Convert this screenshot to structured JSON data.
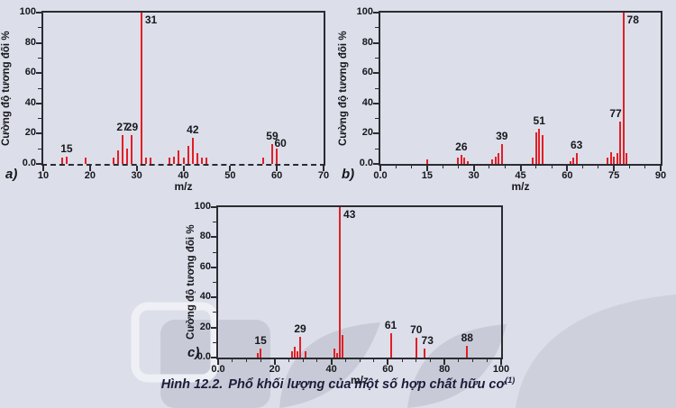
{
  "caption": {
    "prefix": "Hình 12.2.",
    "text": "Phổ khối lượng của một số hợp chất hữu cơ",
    "superscript": "(1)"
  },
  "colors": {
    "background": "#dcdee9",
    "bar": "#e11f26",
    "axis": "#2b2b31",
    "text": "#17171c",
    "caption": "#1c1c3a",
    "watermark": "#c8cbd7",
    "watermark_light": "#eef0f6"
  },
  "chart_data": [
    {
      "id": "a",
      "type": "bar",
      "panel_label": "a)",
      "title": "",
      "xlabel": "m/z",
      "ylabel": "Cường độ tương đối %",
      "xlim": [
        10,
        70
      ],
      "ylim": [
        0,
        100
      ],
      "grid": false,
      "x_axis_line": "dashed",
      "x_minor_step": null,
      "y_minor_step": 10,
      "x_major_ticks": [
        {
          "value": 10,
          "label": "10"
        },
        {
          "value": 20,
          "label": "20"
        },
        {
          "value": 30,
          "label": "30"
        },
        {
          "value": 40,
          "label": "40"
        },
        {
          "value": 50,
          "label": "50"
        },
        {
          "value": 60,
          "label": "60"
        },
        {
          "value": 70,
          "label": "70"
        }
      ],
      "y_major_ticks": [
        {
          "value": 0,
          "label": "0.0"
        },
        {
          "value": 20,
          "label": "20"
        },
        {
          "value": 40,
          "label": "40"
        },
        {
          "value": 60,
          "label": "60"
        },
        {
          "value": 80,
          "label": "80"
        },
        {
          "value": 100,
          "label": "100"
        }
      ],
      "peaks": [
        {
          "mz": 14,
          "intensity": 4
        },
        {
          "mz": 15,
          "intensity": 5
        },
        {
          "mz": 19,
          "intensity": 4
        },
        {
          "mz": 25,
          "intensity": 4
        },
        {
          "mz": 26,
          "intensity": 9
        },
        {
          "mz": 27,
          "intensity": 19
        },
        {
          "mz": 28,
          "intensity": 10
        },
        {
          "mz": 29,
          "intensity": 19
        },
        {
          "mz": 31,
          "intensity": 100
        },
        {
          "mz": 32,
          "intensity": 4
        },
        {
          "mz": 33,
          "intensity": 4
        },
        {
          "mz": 37,
          "intensity": 4
        },
        {
          "mz": 38,
          "intensity": 5
        },
        {
          "mz": 39,
          "intensity": 9
        },
        {
          "mz": 40,
          "intensity": 4
        },
        {
          "mz": 41,
          "intensity": 12
        },
        {
          "mz": 42,
          "intensity": 17
        },
        {
          "mz": 43,
          "intensity": 7
        },
        {
          "mz": 44,
          "intensity": 4
        },
        {
          "mz": 45,
          "intensity": 4
        },
        {
          "mz": 57,
          "intensity": 4
        },
        {
          "mz": 59,
          "intensity": 13
        },
        {
          "mz": 60,
          "intensity": 10
        }
      ],
      "peak_labels": [
        {
          "mz": 15,
          "text": "15",
          "placement": "above"
        },
        {
          "mz": 27,
          "text": "27",
          "placement": "above"
        },
        {
          "mz": 29,
          "text": "29",
          "placement": "above"
        },
        {
          "mz": 31,
          "text": "31",
          "placement": "right-top"
        },
        {
          "mz": 42,
          "text": "42",
          "placement": "above"
        },
        {
          "mz": 59,
          "text": "59",
          "placement": "above"
        },
        {
          "mz": 60,
          "text": "60",
          "placement": "above",
          "dx": 4,
          "dy": 3
        }
      ]
    },
    {
      "id": "b",
      "type": "bar",
      "panel_label": "b)",
      "title": "",
      "xlabel": "m/z",
      "ylabel": "Cường độ tương đối %",
      "xlim": [
        0,
        90
      ],
      "ylim": [
        0,
        100
      ],
      "grid": false,
      "x_axis_line": "solid",
      "x_minor_step": 5,
      "y_minor_step": 10,
      "x_major_ticks": [
        {
          "value": 0,
          "label": "0.0"
        },
        {
          "value": 15,
          "label": "15"
        },
        {
          "value": 30,
          "label": "30"
        },
        {
          "value": 45,
          "label": "45"
        },
        {
          "value": 60,
          "label": "60"
        },
        {
          "value": 75,
          "label": "75"
        },
        {
          "value": 90,
          "label": "90"
        }
      ],
      "y_major_ticks": [
        {
          "value": 0,
          "label": "0.0"
        },
        {
          "value": 20,
          "label": "20"
        },
        {
          "value": 40,
          "label": "40"
        },
        {
          "value": 60,
          "label": "60"
        },
        {
          "value": 80,
          "label": "80"
        },
        {
          "value": 100,
          "label": "100"
        }
      ],
      "peaks": [
        {
          "mz": 15,
          "intensity": 3
        },
        {
          "mz": 25,
          "intensity": 4
        },
        {
          "mz": 26,
          "intensity": 6
        },
        {
          "mz": 27,
          "intensity": 4
        },
        {
          "mz": 28,
          "intensity": 2
        },
        {
          "mz": 36,
          "intensity": 3
        },
        {
          "mz": 37,
          "intensity": 5
        },
        {
          "mz": 38,
          "intensity": 7
        },
        {
          "mz": 39,
          "intensity": 13
        },
        {
          "mz": 49,
          "intensity": 4
        },
        {
          "mz": 50,
          "intensity": 21
        },
        {
          "mz": 51,
          "intensity": 23
        },
        {
          "mz": 52,
          "intensity": 19
        },
        {
          "mz": 61,
          "intensity": 2
        },
        {
          "mz": 62,
          "intensity": 4
        },
        {
          "mz": 63,
          "intensity": 7
        },
        {
          "mz": 73,
          "intensity": 4
        },
        {
          "mz": 74,
          "intensity": 8
        },
        {
          "mz": 75,
          "intensity": 5
        },
        {
          "mz": 76,
          "intensity": 7
        },
        {
          "mz": 77,
          "intensity": 28
        },
        {
          "mz": 78,
          "intensity": 100
        },
        {
          "mz": 79,
          "intensity": 7
        }
      ],
      "peak_labels": [
        {
          "mz": 26,
          "text": "26",
          "placement": "above"
        },
        {
          "mz": 39,
          "text": "39",
          "placement": "above"
        },
        {
          "mz": 51,
          "text": "51",
          "placement": "above"
        },
        {
          "mz": 63,
          "text": "63",
          "placement": "above"
        },
        {
          "mz": 77,
          "text": "77",
          "placement": "above",
          "dx": -5
        },
        {
          "mz": 78,
          "text": "78",
          "placement": "right-top"
        }
      ]
    },
    {
      "id": "c",
      "type": "bar",
      "panel_label": "c)",
      "title": "",
      "xlabel": "m/z",
      "ylabel": "Cường độ tương đối %",
      "xlim": [
        0,
        100
      ],
      "ylim": [
        0,
        100
      ],
      "grid": false,
      "x_axis_line": "solid",
      "x_minor_step": 5,
      "y_minor_step": 10,
      "x_major_ticks": [
        {
          "value": 0,
          "label": "0.0"
        },
        {
          "value": 20,
          "label": "20"
        },
        {
          "value": 40,
          "label": "40"
        },
        {
          "value": 60,
          "label": "60"
        },
        {
          "value": 80,
          "label": "80"
        },
        {
          "value": 100,
          "label": "100"
        }
      ],
      "y_major_ticks": [
        {
          "value": 0,
          "label": "0.0"
        },
        {
          "value": 20,
          "label": "20"
        },
        {
          "value": 40,
          "label": "40"
        },
        {
          "value": 60,
          "label": "60"
        },
        {
          "value": 80,
          "label": "80"
        },
        {
          "value": 100,
          "label": "100"
        }
      ],
      "peaks": [
        {
          "mz": 14,
          "intensity": 3
        },
        {
          "mz": 15,
          "intensity": 6
        },
        {
          "mz": 26,
          "intensity": 4
        },
        {
          "mz": 27,
          "intensity": 7
        },
        {
          "mz": 28,
          "intensity": 4
        },
        {
          "mz": 29,
          "intensity": 14
        },
        {
          "mz": 31,
          "intensity": 4
        },
        {
          "mz": 41,
          "intensity": 6
        },
        {
          "mz": 42,
          "intensity": 3
        },
        {
          "mz": 43,
          "intensity": 100
        },
        {
          "mz": 44,
          "intensity": 15
        },
        {
          "mz": 61,
          "intensity": 16
        },
        {
          "mz": 70,
          "intensity": 13
        },
        {
          "mz": 73,
          "intensity": 6
        },
        {
          "mz": 88,
          "intensity": 8
        }
      ],
      "peak_labels": [
        {
          "mz": 15,
          "text": "15",
          "placement": "above"
        },
        {
          "mz": 29,
          "text": "29",
          "placement": "above"
        },
        {
          "mz": 43,
          "text": "43",
          "placement": "right-top"
        },
        {
          "mz": 61,
          "text": "61",
          "placement": "above"
        },
        {
          "mz": 70,
          "text": "70",
          "placement": "above"
        },
        {
          "mz": 73,
          "text": "73",
          "placement": "above",
          "dx": 3
        },
        {
          "mz": 88,
          "text": "88",
          "placement": "above"
        }
      ]
    }
  ]
}
